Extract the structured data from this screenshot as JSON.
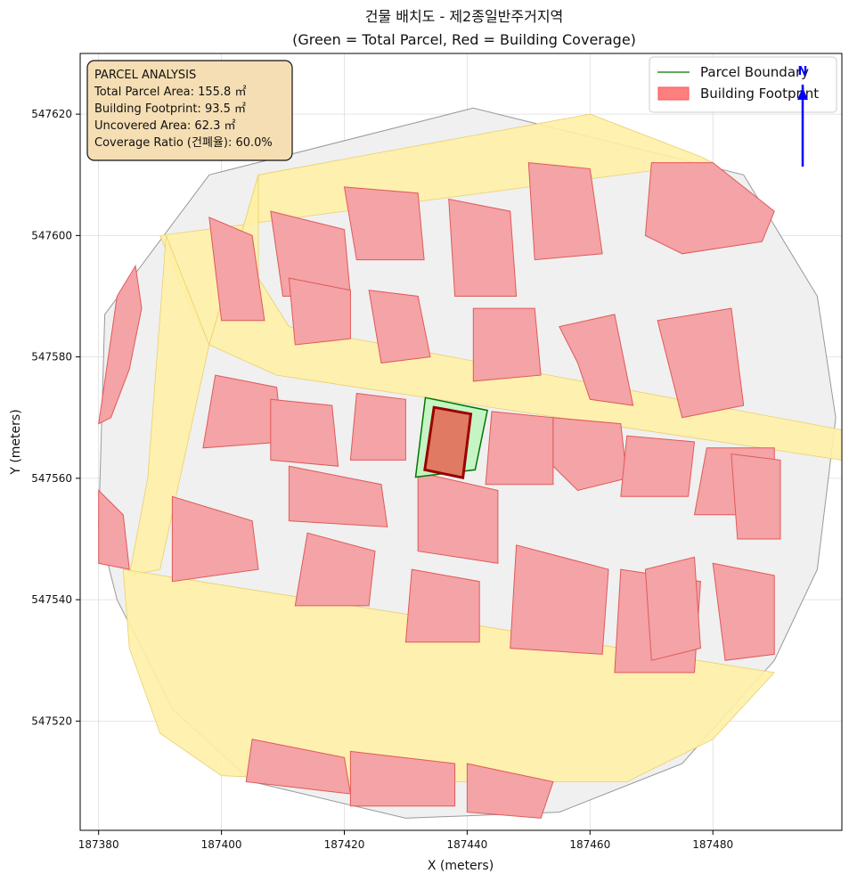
{
  "title": {
    "line1": "건물 배치도 - 제2종일반주거지역",
    "line2": "(Green = Total Parcel, Red = Building Coverage)"
  },
  "axes": {
    "xlabel": "X (meters)",
    "ylabel": "Y (meters)",
    "xlim": [
      187377,
      187501
    ],
    "ylim": [
      547502,
      547630
    ],
    "xticks": [
      "187380",
      "187400",
      "187420",
      "187440",
      "187460",
      "187480"
    ],
    "yticks": [
      "547520",
      "547540",
      "547560",
      "547580",
      "547600",
      "547620"
    ],
    "grid": true
  },
  "info_box": {
    "heading": "PARCEL ANALYSIS",
    "total_area": "Total Parcel Area: 155.8 ㎡",
    "footprint": "Building Footprint: 93.5 ㎡",
    "uncovered": "Uncovered Area: 62.3 ㎡",
    "ratio": "Coverage Ratio (건폐율): 60.0%"
  },
  "legend": {
    "placement": "top-right",
    "items": [
      {
        "label": "Parcel Boundary",
        "color": "#007700"
      },
      {
        "label": "Building Footprint",
        "color": "#ff7f7f"
      }
    ]
  },
  "north_arrow": {
    "label": "N",
    "color": "#0000ff"
  },
  "colors": {
    "road": "#fff0a6",
    "parcel_fill": "#f0f0f0",
    "parcel_edge": "#707070",
    "building_fill": "#f4a3a6",
    "building_edge": "#e05a5a",
    "target_parcel_fill": "#c5f5c5",
    "target_parcel_edge": "#007700",
    "target_building_fill": "#e07a62",
    "target_building_edge": "#990000",
    "info_box_fill": "#f5deb3"
  },
  "chart_data": {
    "type": "map",
    "target_parcel": {
      "polygon": [
        [
          187433.2,
          547573.3
        ],
        [
          187443.3,
          547571.2
        ],
        [
          187441.3,
          547561.4
        ],
        [
          187431.6,
          547560.2
        ]
      ],
      "area_m2": 155.8
    },
    "target_building": {
      "polygon": [
        [
          187434.6,
          547571.7
        ],
        [
          187440.6,
          547570.6
        ],
        [
          187439.3,
          547560.1
        ],
        [
          187433.1,
          547561.4
        ]
      ],
      "area_m2": 93.5
    },
    "coverage_ratio_percent": 60.0,
    "roads": [
      [
        [
          187406,
          547610
        ],
        [
          187460,
          547620
        ],
        [
          187478,
          547613
        ],
        [
          187480,
          547612
        ],
        [
          187390,
          547600
        ],
        [
          187395,
          547588
        ],
        [
          187398,
          547582
        ]
      ],
      [
        [
          187398,
          547582
        ],
        [
          187409,
          547577
        ],
        [
          187501,
          547563
        ],
        [
          187501,
          547568
        ],
        [
          187411,
          547585
        ],
        [
          187406,
          547593
        ],
        [
          187406,
          547610
        ]
      ],
      [
        [
          187391,
          547600
        ],
        [
          187398,
          547582
        ],
        [
          187390,
          547545
        ],
        [
          187385,
          547544
        ],
        [
          187388,
          547560
        ]
      ],
      [
        [
          187384,
          547545
        ],
        [
          187490,
          547528
        ],
        [
          187480,
          547517
        ],
        [
          187466,
          547510
        ],
        [
          187425,
          547510
        ],
        [
          187400,
          547511
        ],
        [
          187390,
          547518
        ],
        [
          187385,
          547532
        ]
      ]
    ],
    "buildings": [
      [
        [
          187383,
          547590
        ],
        [
          187386,
          547595
        ],
        [
          187387,
          547588
        ],
        [
          187385,
          547578
        ],
        [
          187382,
          547570
        ],
        [
          187380,
          547569
        ]
      ],
      [
        [
          187398,
          547603
        ],
        [
          187405,
          547600
        ],
        [
          187407,
          547586
        ],
        [
          187400,
          547586
        ]
      ],
      [
        [
          187408,
          547604
        ],
        [
          187420,
          547601
        ],
        [
          187421,
          547590
        ],
        [
          187410,
          547590
        ]
      ],
      [
        [
          187420,
          547608
        ],
        [
          187432,
          547607
        ],
        [
          187433,
          547596
        ],
        [
          187422,
          547596
        ]
      ],
      [
        [
          187437,
          547606
        ],
        [
          187447,
          547604
        ],
        [
          187448,
          547590
        ],
        [
          187438,
          547590
        ]
      ],
      [
        [
          187450,
          547612
        ],
        [
          187460,
          547611
        ],
        [
          187462,
          547597
        ],
        [
          187451,
          547596
        ]
      ],
      [
        [
          187470,
          547612
        ],
        [
          187480,
          547612
        ],
        [
          187490,
          547604
        ],
        [
          187488,
          547599
        ],
        [
          187475,
          547597
        ],
        [
          187469,
          547600
        ]
      ],
      [
        [
          187411,
          547593
        ],
        [
          187421,
          547591
        ],
        [
          187421,
          547583
        ],
        [
          187412,
          547582
        ]
      ],
      [
        [
          187424,
          547591
        ],
        [
          187432,
          547590
        ],
        [
          187434,
          547580
        ],
        [
          187426,
          547579
        ]
      ],
      [
        [
          187441,
          547588
        ],
        [
          187451,
          547588
        ],
        [
          187452,
          547577
        ],
        [
          187441,
          547576
        ]
      ],
      [
        [
          187455,
          547585
        ],
        [
          187464,
          547587
        ],
        [
          187467,
          547572
        ],
        [
          187460,
          547573
        ],
        [
          187458,
          547579
        ]
      ],
      [
        [
          187471,
          547586
        ],
        [
          187483,
          547588
        ],
        [
          187485,
          547572
        ],
        [
          187475,
          547570
        ]
      ],
      [
        [
          187399,
          547577
        ],
        [
          187409,
          547575
        ],
        [
          187410,
          547566
        ],
        [
          187397,
          547565
        ]
      ],
      [
        [
          187408,
          547573
        ],
        [
          187418,
          547572
        ],
        [
          187419,
          547562
        ],
        [
          187408,
          547563
        ]
      ],
      [
        [
          187422,
          547574
        ],
        [
          187430,
          547573
        ],
        [
          187430,
          547563
        ],
        [
          187421,
          547563
        ]
      ],
      [
        [
          187444,
          547571
        ],
        [
          187454,
          547570
        ],
        [
          187454,
          547559
        ],
        [
          187443,
          547559
        ]
      ],
      [
        [
          187454,
          547570
        ],
        [
          187465,
          547569
        ],
        [
          187466,
          547560
        ],
        [
          187458,
          547558
        ],
        [
          187454,
          547562
        ]
      ],
      [
        [
          187466,
          547567
        ],
        [
          187477,
          547566
        ],
        [
          187476,
          547557
        ],
        [
          187465,
          547557
        ]
      ],
      [
        [
          187479,
          547565
        ],
        [
          187490,
          547565
        ],
        [
          187490,
          547554
        ],
        [
          187477,
          547554
        ]
      ],
      [
        [
          187483,
          547564
        ],
        [
          187491,
          547563
        ],
        [
          187491,
          547550
        ],
        [
          187484,
          547550
        ]
      ],
      [
        [
          187392,
          547557
        ],
        [
          187405,
          547553
        ],
        [
          187406,
          547545
        ],
        [
          187392,
          547543
        ]
      ],
      [
        [
          187411,
          547562
        ],
        [
          187426,
          547559
        ],
        [
          187427,
          547552
        ],
        [
          187411,
          547553
        ]
      ],
      [
        [
          187432,
          547561
        ],
        [
          187445,
          547558
        ],
        [
          187445,
          547546
        ],
        [
          187432,
          547548
        ]
      ],
      [
        [
          187414,
          547551
        ],
        [
          187425,
          547548
        ],
        [
          187424,
          547539
        ],
        [
          187412,
          547539
        ]
      ],
      [
        [
          187431,
          547545
        ],
        [
          187442,
          547543
        ],
        [
          187442,
          547533
        ],
        [
          187430,
          547533
        ]
      ],
      [
        [
          187448,
          547549
        ],
        [
          187463,
          547545
        ],
        [
          187462,
          547531
        ],
        [
          187447,
          547532
        ]
      ],
      [
        [
          187465,
          547545
        ],
        [
          187478,
          547543
        ],
        [
          187477,
          547528
        ],
        [
          187464,
          547528
        ]
      ],
      [
        [
          187469,
          547545
        ],
        [
          187477,
          547547
        ],
        [
          187478,
          547532
        ],
        [
          187470,
          547530
        ]
      ],
      [
        [
          187480,
          547546
        ],
        [
          187490,
          547544
        ],
        [
          187490,
          547531
        ],
        [
          187482,
          547530
        ]
      ],
      [
        [
          187380,
          547558
        ],
        [
          187384,
          547554
        ],
        [
          187385,
          547545
        ],
        [
          187380,
          547546
        ]
      ],
      [
        [
          187405,
          547517
        ],
        [
          187420,
          547514
        ],
        [
          187421,
          547508
        ],
        [
          187404,
          547510
        ]
      ],
      [
        [
          187421,
          547515
        ],
        [
          187438,
          547513
        ],
        [
          187438,
          547506
        ],
        [
          187421,
          547506
        ]
      ],
      [
        [
          187440,
          547513
        ],
        [
          187454,
          547510
        ],
        [
          187452,
          547504
        ],
        [
          187440,
          547505
        ]
      ]
    ],
    "parcel_boundaries": [
      [
        [
          187380,
          547552
        ],
        [
          187381,
          547587
        ],
        [
          187398,
          547610
        ],
        [
          187441,
          547621
        ],
        [
          187485,
          547610
        ],
        [
          187497,
          547590
        ],
        [
          187500,
          547570
        ],
        [
          187497,
          547545
        ],
        [
          187490,
          547530
        ],
        [
          187475,
          547513
        ],
        [
          187455,
          547505
        ],
        [
          187430,
          547504
        ],
        [
          187405,
          547510
        ],
        [
          187392,
          547522
        ],
        [
          187383,
          547540
        ]
      ]
    ]
  }
}
